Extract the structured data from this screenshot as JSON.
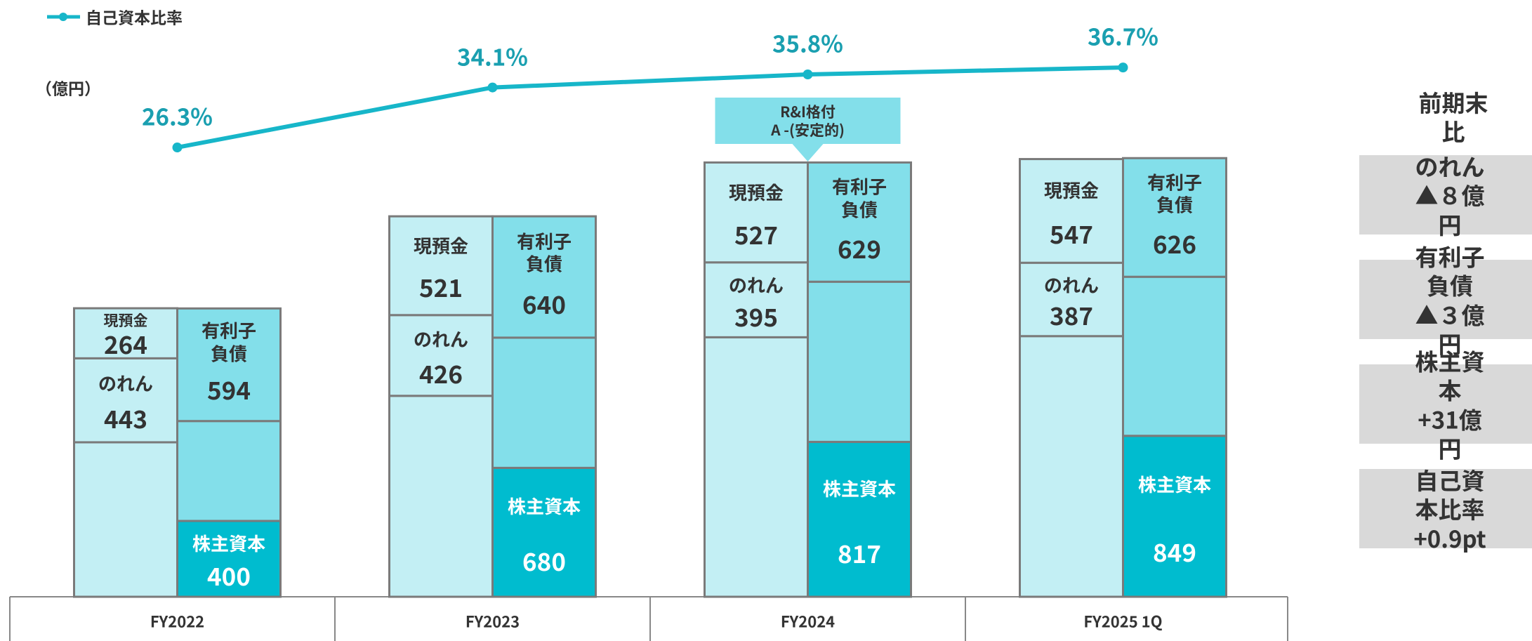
{
  "chart_data": {
    "type": "bar",
    "stacked": true,
    "unit": "（億円）",
    "categories": [
      "FY2022",
      "FY2023",
      "FY2024",
      "FY2025 1Q"
    ],
    "ylim": [
      0,
      3000
    ],
    "y2lim": [
      0,
      40
    ],
    "series": [
      {
        "name": null,
        "stack": "assets",
        "color": "#c3eff4",
        "values": [
          815,
          1060,
          1369,
          1375
        ]
      },
      {
        "name": "のれん",
        "stack": "assets",
        "color": "#c3eff4",
        "values": [
          443,
          426,
          395,
          387
        ]
      },
      {
        "name": "現預金",
        "stack": "assets",
        "color": "#c3eff4",
        "values": [
          264,
          521,
          527,
          547
        ]
      },
      {
        "name": "株主資本",
        "stack": "liabilities",
        "color": "#00bccf",
        "label_color": "#ffffff",
        "values": [
          400,
          680,
          817,
          849
        ]
      },
      {
        "name": null,
        "stack": "liabilities",
        "color": "#83dfea",
        "values": [
          527,
          687,
          845,
          839
        ]
      },
      {
        "name": "有利子\n負債",
        "stack": "liabilities",
        "color": "#83dfea",
        "values": [
          594,
          640,
          629,
          626
        ]
      },
      {
        "name": "自己資本比率",
        "type": "line",
        "axis": "y2",
        "color": "#17b6c9",
        "values": [
          26.3,
          34.1,
          35.8,
          36.7
        ],
        "value_labels": [
          "26.3%",
          "34.1%",
          "35.8%",
          "36.7%"
        ]
      }
    ],
    "annotations": [
      {
        "text": "R&I格付\nA -(安定的)"
      }
    ]
  },
  "comparison": {
    "title": "前期末比",
    "items": [
      "のれん\n▲８億円",
      "有利子負債\n▲３億円",
      "株主資本\n+31億円",
      "自己資本比率\n+0.9pt"
    ]
  }
}
